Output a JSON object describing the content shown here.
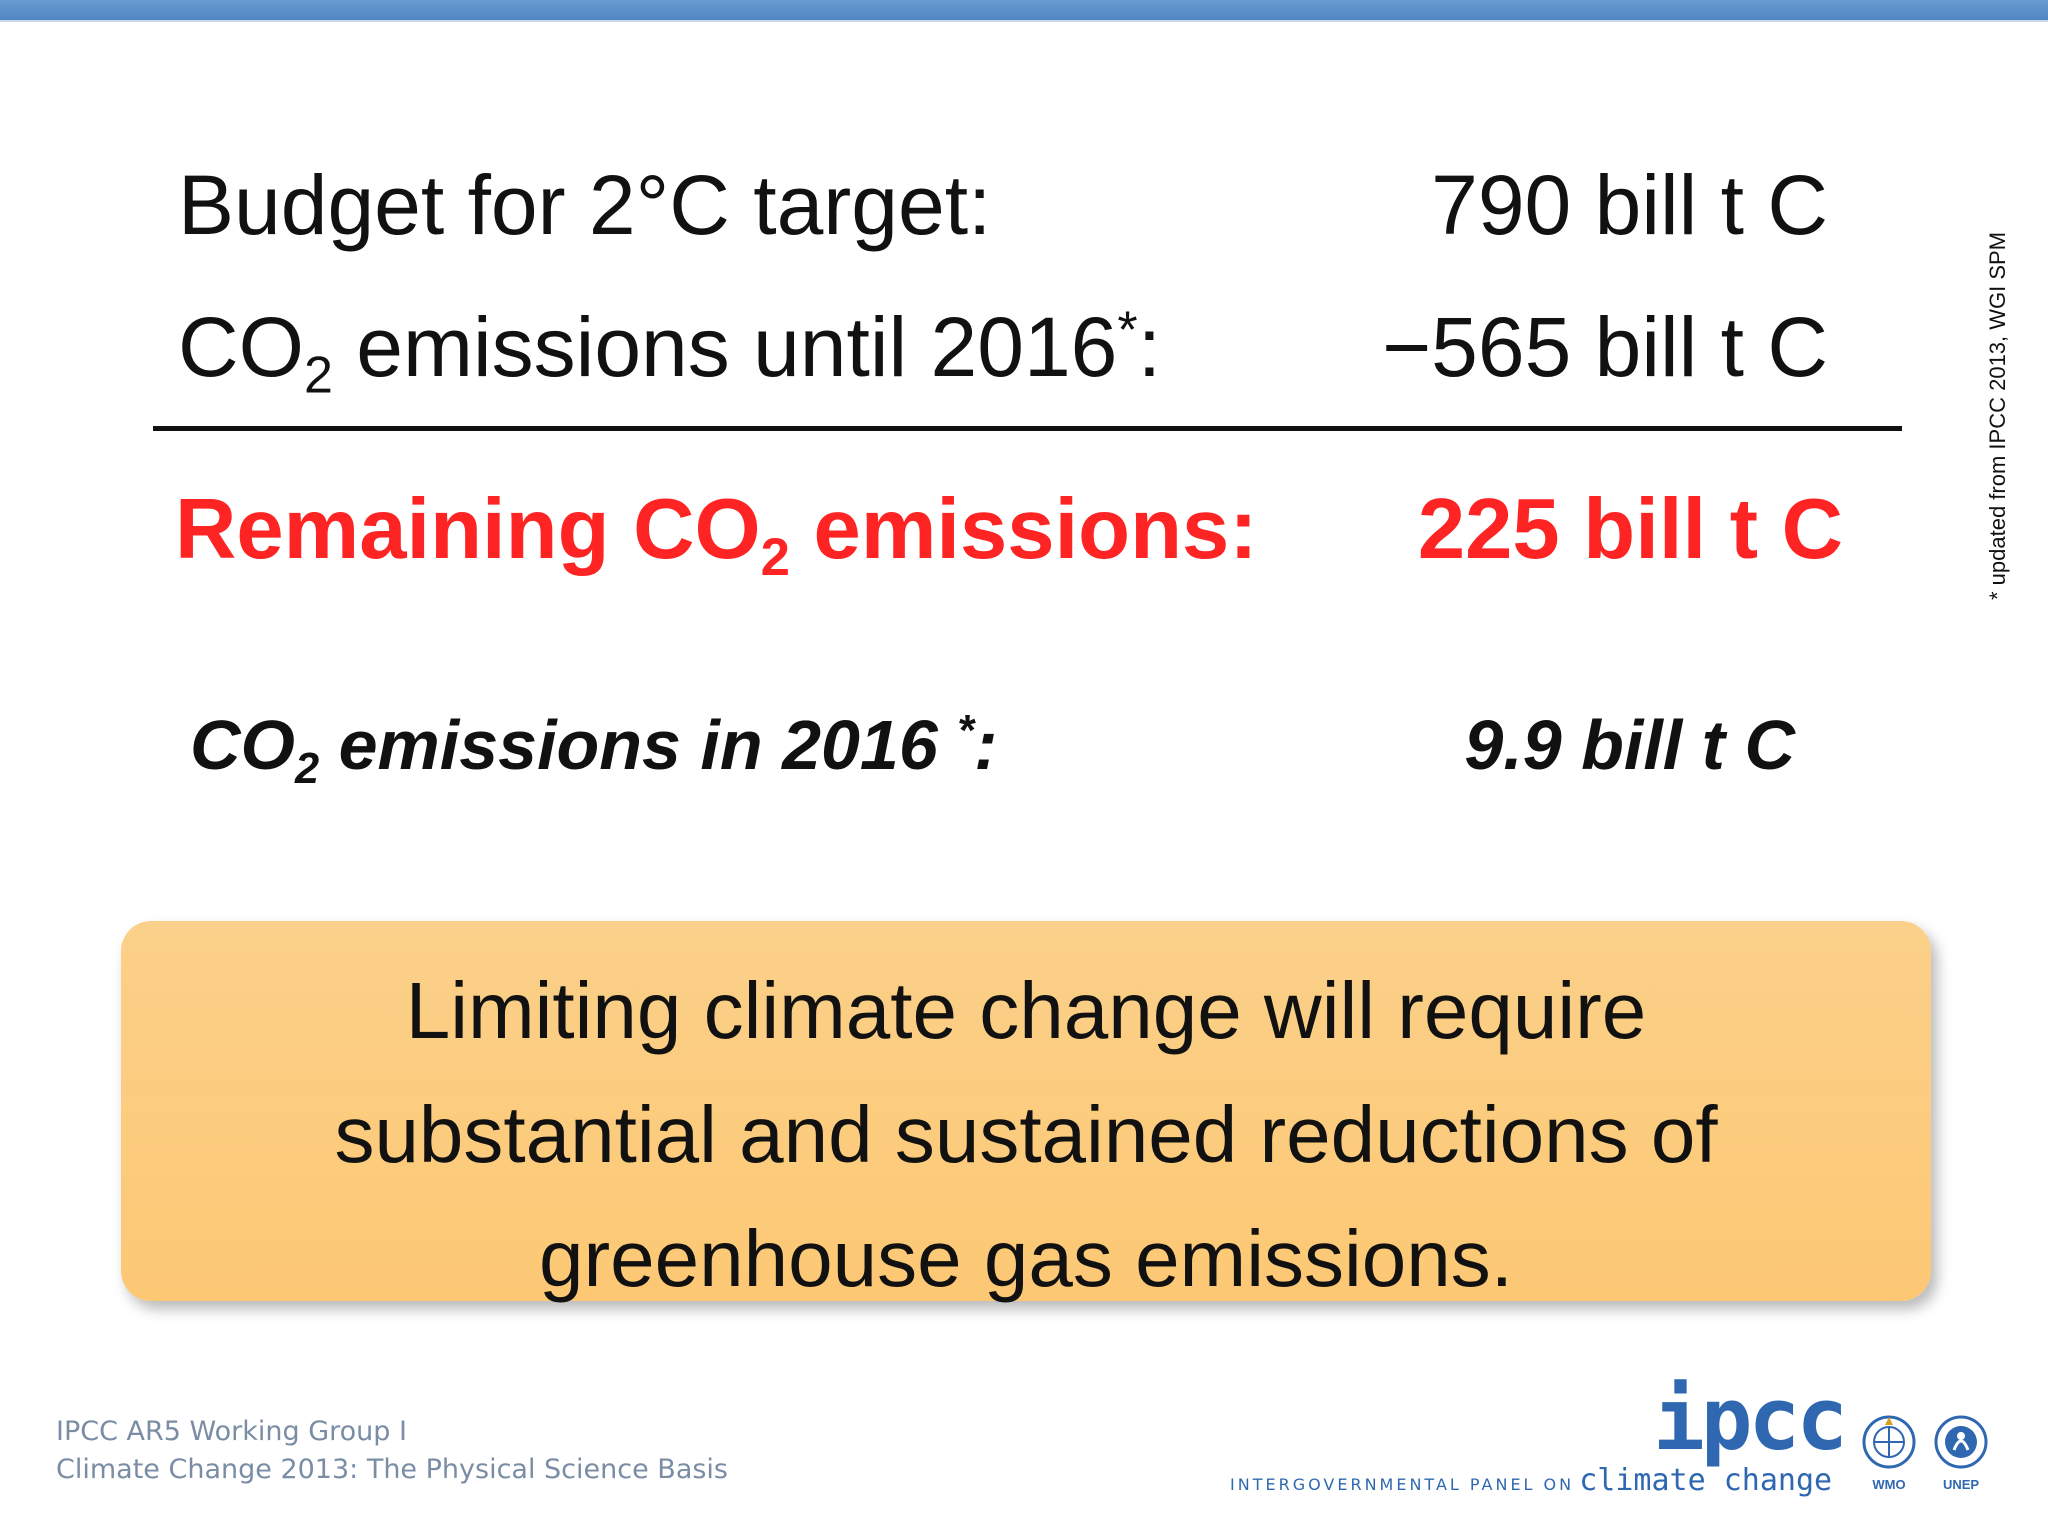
{
  "slide": {
    "row1": {
      "label": "Budget for 2°C target:",
      "value": "790 bill t C"
    },
    "row2": {
      "label_pre": "CO",
      "label_sub": "2",
      "label_mid": " emissions until 2016",
      "label_sup": "*",
      "label_end": ":",
      "value": "−565 bill t C"
    },
    "row3": {
      "label_pre": "Remaining CO",
      "label_sub": "2",
      "label_end": " emissions:",
      "value": "225 bill t C",
      "color": "#ff2424"
    },
    "row4": {
      "label_pre": "CO",
      "label_sub": "2",
      "label_mid": " emissions in 2016 ",
      "label_sup": "*",
      "label_end": ":",
      "value": "9.9 bill t C"
    },
    "side_note": "* updated from IPCC 2013, WGI SPM",
    "callout": {
      "line1": "Limiting climate change will require",
      "line2": "substantial and sustained reductions of",
      "line3": "greenhouse gas emissions."
    }
  },
  "footer": {
    "left_line1": "IPCC AR5 Working Group I",
    "left_line2": "Climate Change 2013: The Physical Science Basis",
    "ipcc_logo_text": "ipcc",
    "ipcc_tagline_a": "INTERGOVERNMENTAL PANEL ON",
    "ipcc_tagline_b": "climate change",
    "logo1_caption": "WMO",
    "logo2_caption": "UNEP"
  },
  "colors": {
    "accent_blue": "#2f68b0",
    "topbar": "#4f86c4",
    "callout_bg": "#fcc874"
  },
  "icons": [
    "wmo-logo-icon",
    "unep-logo-icon"
  ]
}
